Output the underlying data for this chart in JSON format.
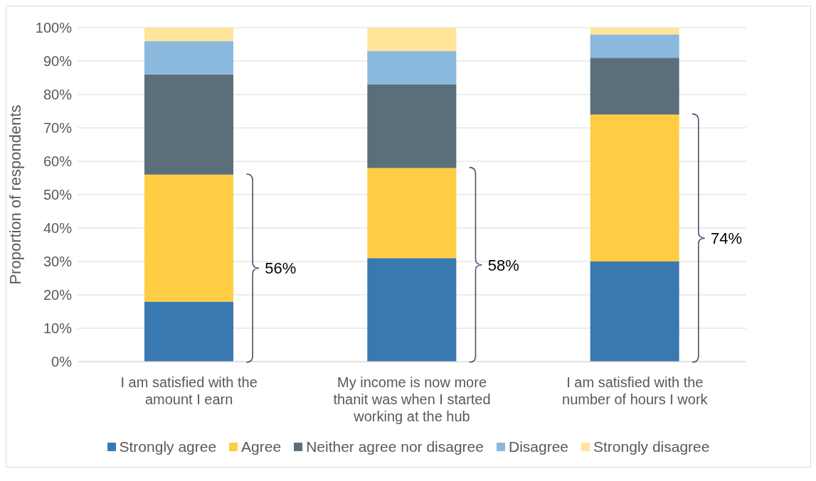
{
  "chart_data": {
    "type": "bar",
    "stacked": true,
    "ylabel": "Proportion of respondents",
    "categories": [
      "I am satisfied with the amount I earn",
      "My income is now more thanit was when I started working at the hub",
      "I am satisfied with the number of hours I work"
    ],
    "series": [
      {
        "name": "Strongly agree",
        "color": "#3a78b0",
        "values": [
          18,
          31,
          30
        ]
      },
      {
        "name": "Agree",
        "color": "#ffcd44",
        "values": [
          38,
          27,
          44
        ]
      },
      {
        "name": "Neither agree nor disagree",
        "color": "#5b6f7a",
        "values": [
          30,
          25,
          17
        ]
      },
      {
        "name": "Disagree",
        "color": "#8ab9dd",
        "values": [
          10,
          10,
          7
        ]
      },
      {
        "name": "Strongly disagree",
        "color": "#ffe49a",
        "values": [
          4,
          7,
          2
        ]
      }
    ],
    "ylim": [
      0,
      100
    ],
    "yticks": [
      {
        "value": 0,
        "label": "0%"
      },
      {
        "value": 10,
        "label": "10%"
      },
      {
        "value": 20,
        "label": "20%"
      },
      {
        "value": 30,
        "label": "30%"
      },
      {
        "value": 40,
        "label": "40%"
      },
      {
        "value": 50,
        "label": "50%"
      },
      {
        "value": 60,
        "label": "60%"
      },
      {
        "value": 70,
        "label": "70%"
      },
      {
        "value": 80,
        "label": "80%"
      },
      {
        "value": 90,
        "label": "90%"
      },
      {
        "value": 100,
        "label": "100%"
      }
    ],
    "grid": "y",
    "legend": "bottom",
    "annotations": [
      "56%",
      "58%",
      "74%"
    ]
  }
}
